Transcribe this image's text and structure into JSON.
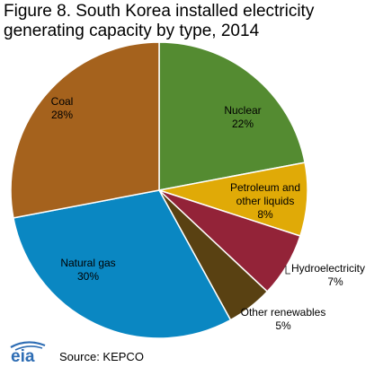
{
  "title": "Figure 8. South Korea installed electricity generating capacity by type, 2014",
  "source": "Source: KEPCO",
  "logo_text": "eia",
  "chart_data": {
    "type": "pie",
    "title": "Figure 8. South Korea installed electricity generating capacity by type, 2014",
    "start_angle_deg": 0,
    "direction": "clockwise",
    "slices": [
      {
        "name": "Nuclear",
        "label_lines": [
          "Nuclear"
        ],
        "value": 22,
        "pct": "22%",
        "color": "#548b31"
      },
      {
        "name": "Petroleum and other liquids",
        "label_lines": [
          "Petroleum and",
          "other liquids"
        ],
        "value": 8,
        "pct": "8%",
        "color": "#e0aa07"
      },
      {
        "name": "Hydroelectricity",
        "label_lines": [
          "Hydroelectricity"
        ],
        "value": 7,
        "pct": "7%",
        "color": "#932338"
      },
      {
        "name": "Other renewables",
        "label_lines": [
          "Other renewables"
        ],
        "value": 5,
        "pct": "5%",
        "color": "#594112"
      },
      {
        "name": "Natural gas",
        "label_lines": [
          "Natural gas"
        ],
        "value": 30,
        "pct": "30%",
        "color": "#0a87c2"
      },
      {
        "name": "Coal",
        "label_lines": [
          "Coal"
        ],
        "value": 28,
        "pct": "28%",
        "color": "#a5621d"
      }
    ]
  }
}
